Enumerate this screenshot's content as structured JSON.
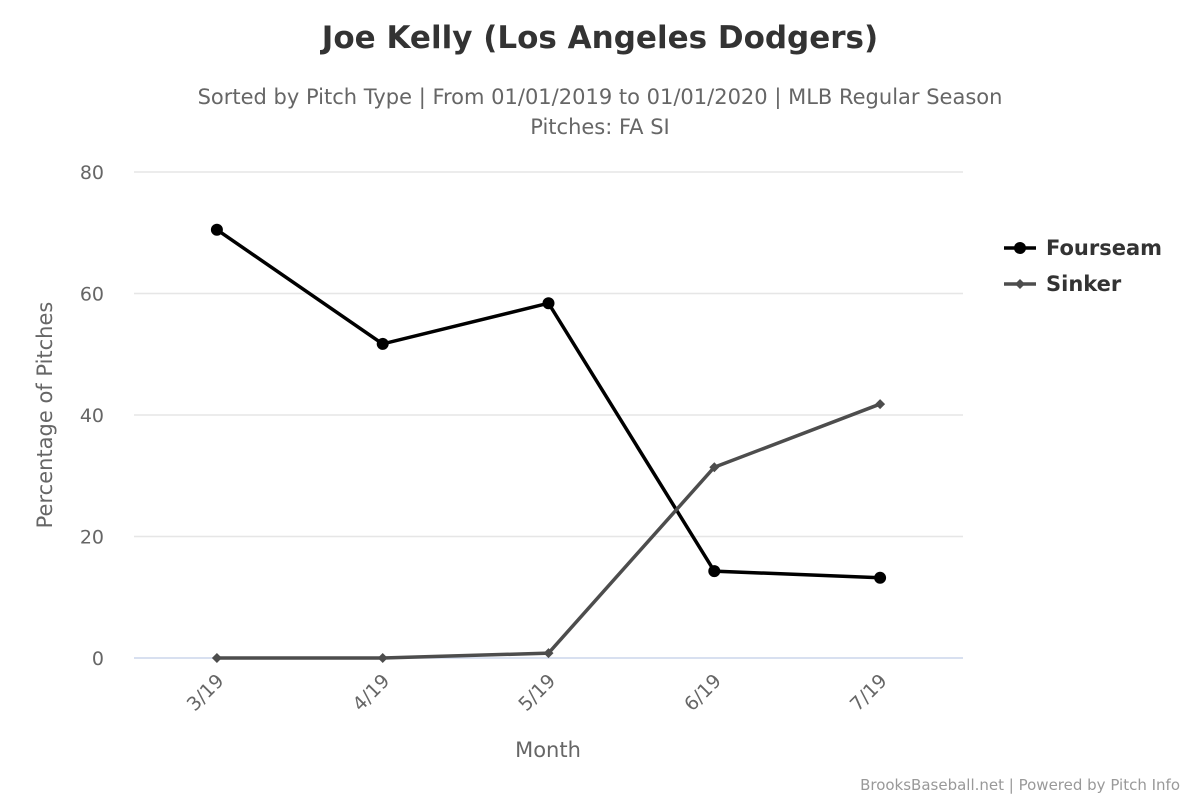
{
  "chart_data": {
    "type": "line",
    "title": "Joe Kelly (Los Angeles Dodgers)",
    "subtitle": "Sorted by Pitch Type | From 01/01/2019 to 01/01/2020 | MLB Regular Season",
    "subtitle2": "Pitches: FA SI",
    "xlabel": "Month",
    "ylabel": "Percentage of Pitches",
    "categories": [
      "3/19",
      "4/19",
      "5/19",
      "6/19",
      "7/19"
    ],
    "ylim": [
      0,
      80
    ],
    "yticks": [
      "0",
      "20",
      "40",
      "60",
      "80"
    ],
    "grid": true,
    "legend_placement": "right",
    "series": [
      {
        "name": "Fourseam",
        "color": "#000000",
        "marker": "circle",
        "values": [
          70.5,
          51.7,
          58.4,
          14.3,
          13.2
        ]
      },
      {
        "name": "Sinker",
        "color": "#4d4d4d",
        "marker": "diamond",
        "values": [
          0,
          0,
          0.8,
          31.4,
          41.8
        ]
      }
    ],
    "credits": "BrooksBaseball.net | Powered by Pitch Info"
  }
}
